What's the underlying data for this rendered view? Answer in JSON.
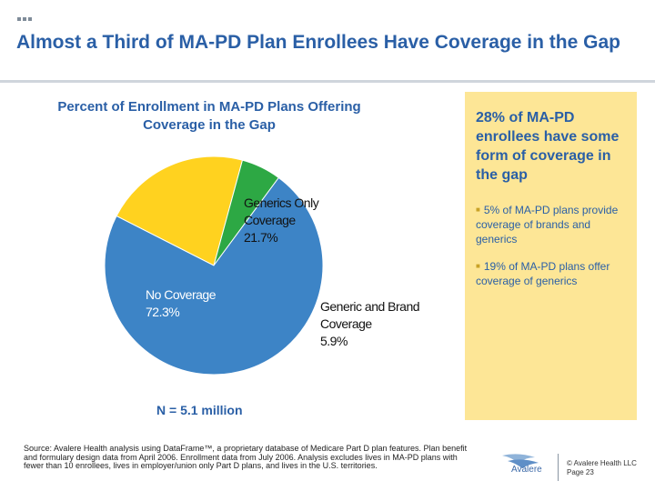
{
  "slide": {
    "title": "Almost a Third of MA-PD Plan Enrollees Have Coverage in the Gap"
  },
  "chart_data": {
    "type": "pie",
    "title": "Percent of Enrollment in MA-PD Plans Offering Coverage in the Gap",
    "slices": [
      {
        "label": "Generics Only Coverage",
        "value": 21.7,
        "value_label": "21.7%",
        "color": "#ffd21f"
      },
      {
        "label": "Generic and Brand Coverage",
        "value": 5.9,
        "value_label": "5.9%",
        "color": "#2da844"
      },
      {
        "label": "No Coverage",
        "value": 72.3,
        "value_label": "72.3%",
        "color": "#3d84c6"
      }
    ],
    "legend": "none",
    "note": "N = 5.1 million"
  },
  "callout": {
    "heading": "28% of MA-PD enrollees have some form of coverage in the gap",
    "items": [
      "5% of MA-PD plans provide coverage of brands and generics",
      "19% of MA-PD plans offer coverage of generics"
    ]
  },
  "footer": {
    "source": "Source: Avalere Health analysis using DataFrame™, a proprietary database of Medicare Part D plan features. Plan benefit and formulary design data from April 2006. Enrollment data from July 2006. Analysis excludes lives in MA-PD plans with fewer than 10 enrollees, lives in employer/union only Part D plans, and lives in the U.S. territories.",
    "logo_text": "Avalere",
    "copyright": "© Avalere Health LLC",
    "page": "Page 23"
  },
  "colors": {
    "accent_blue": "#2a5fa6",
    "callout_bg": "#fde696"
  }
}
